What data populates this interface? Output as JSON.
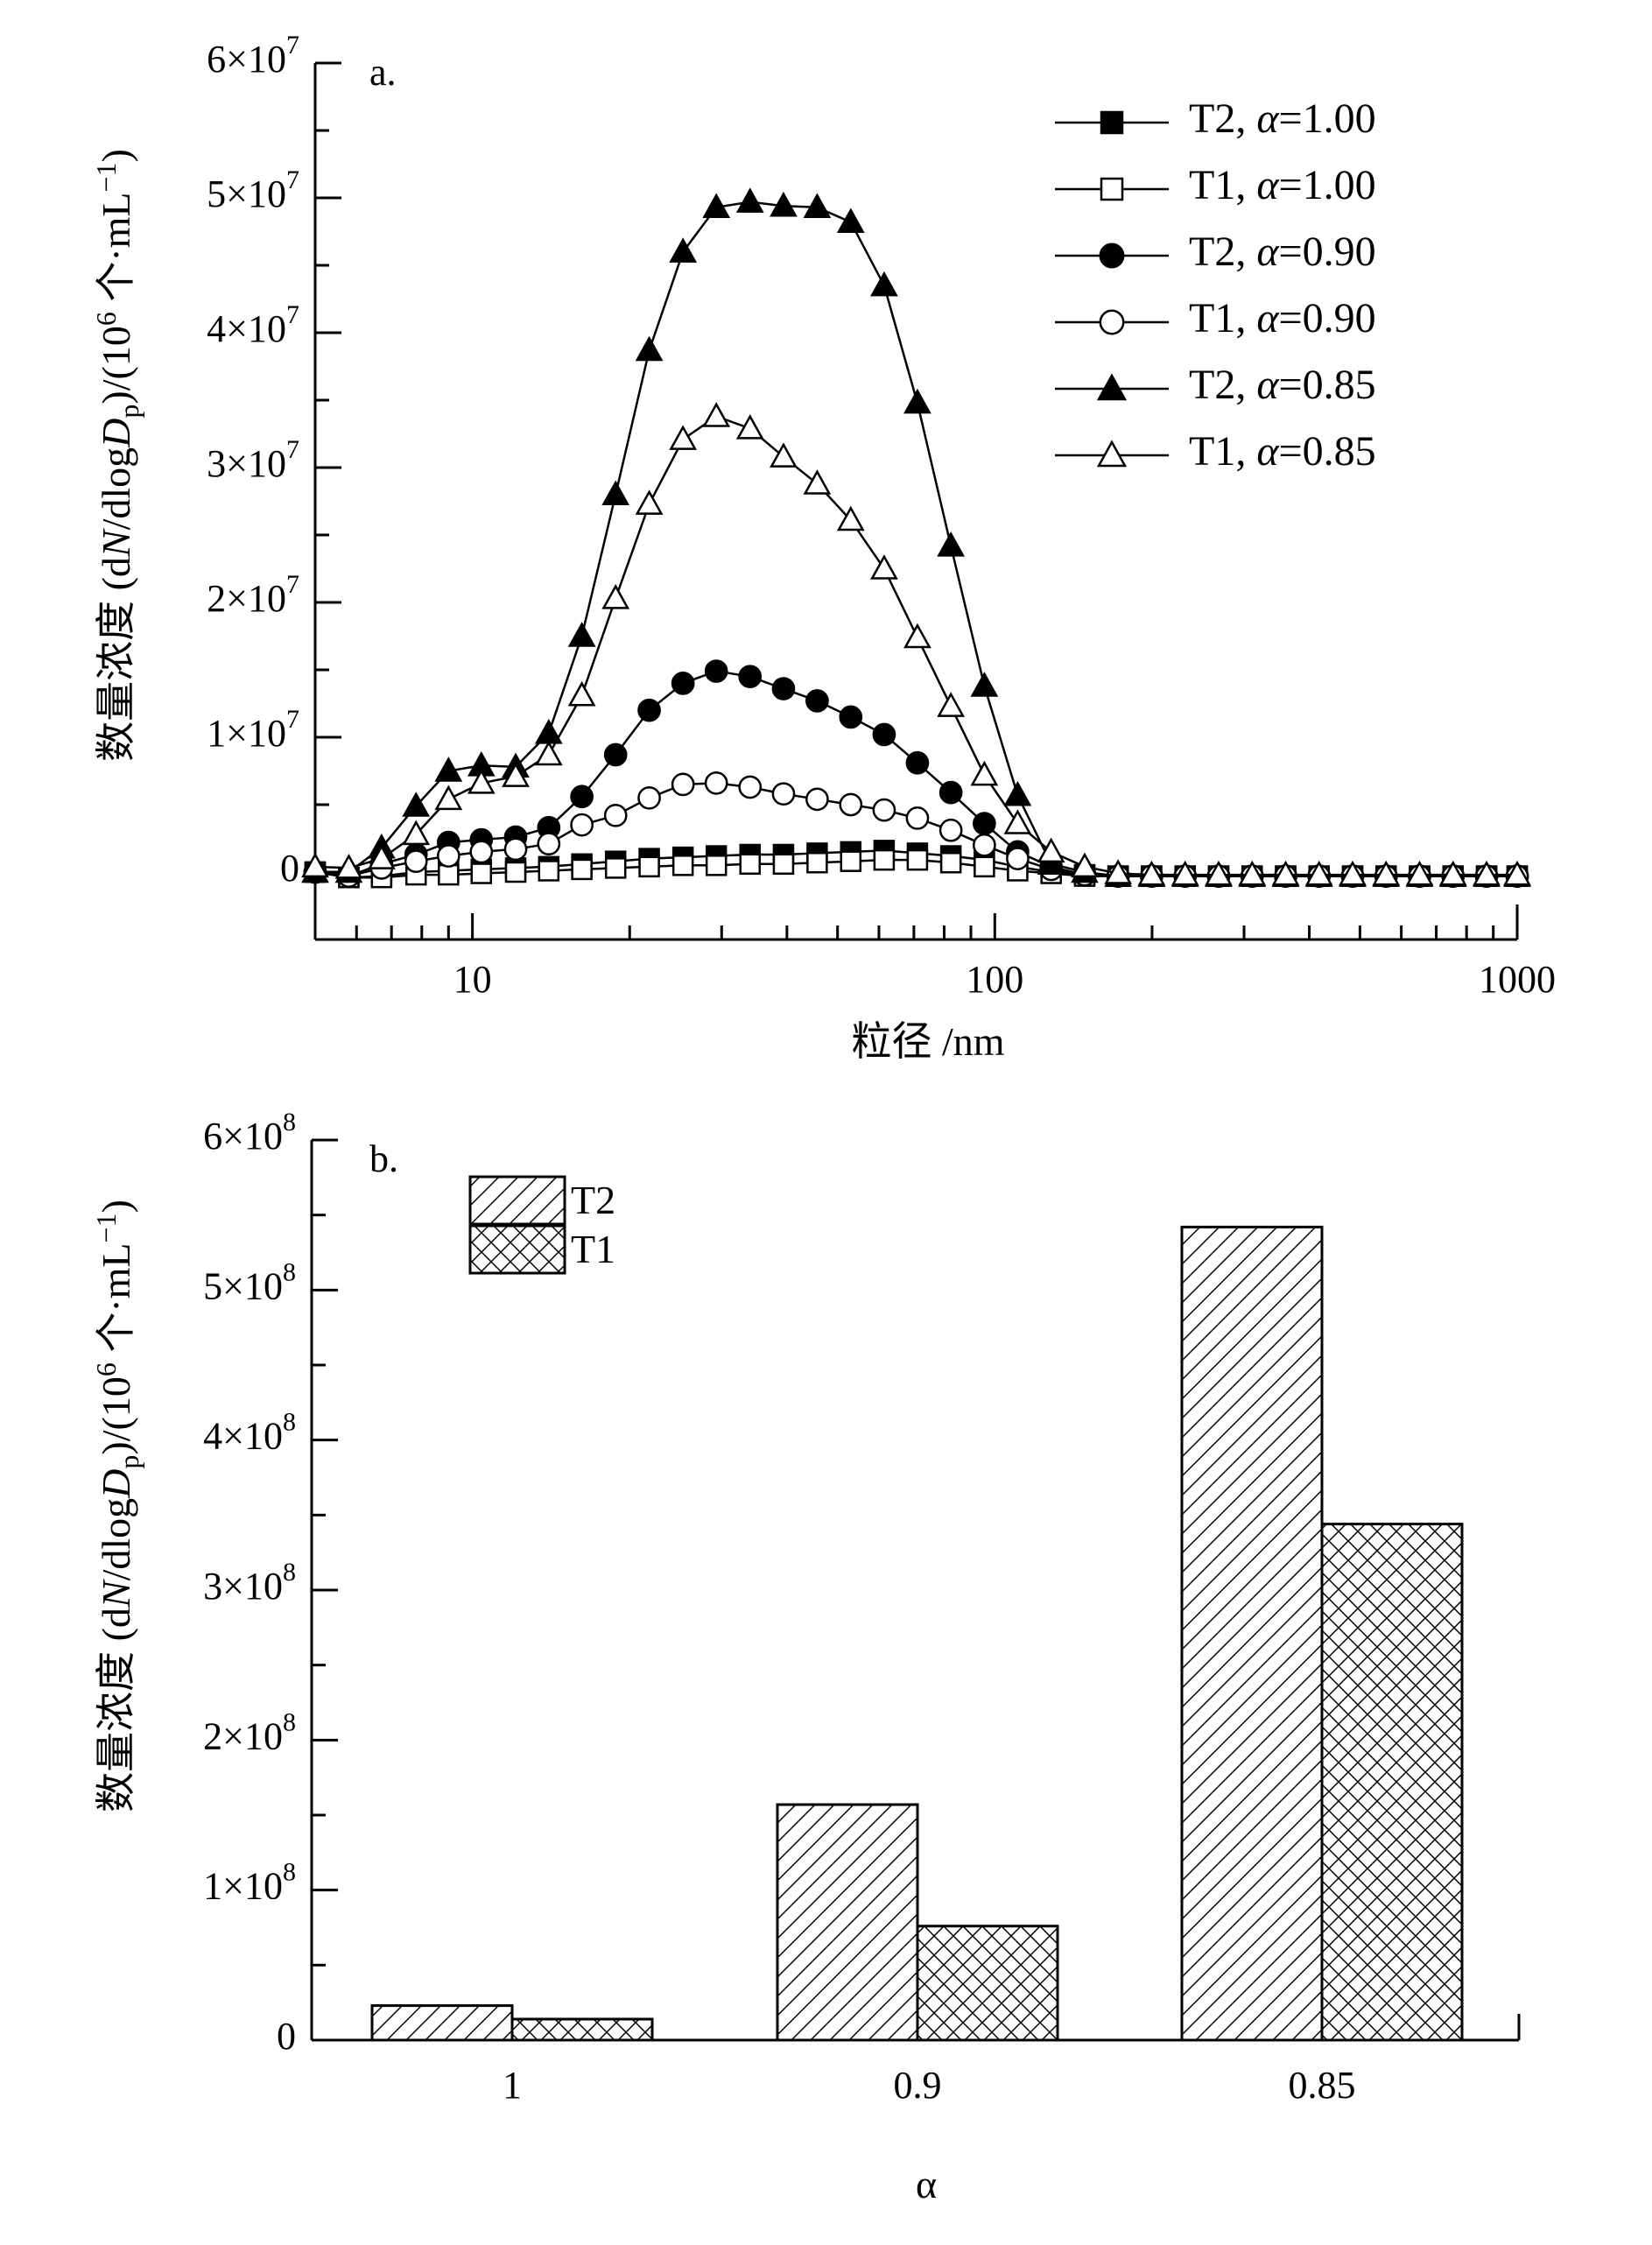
{
  "chart_data": [
    {
      "type": "line",
      "panel_label": "a.",
      "xlabel": "粒径 /nm",
      "ylabel_parts": [
        "数量浓度 (d",
        "N",
        "/dlog",
        "D",
        "p",
        ")/(10",
        "6",
        " 个·mL",
        "−1",
        ")"
      ],
      "x_scale": "log",
      "xlim": [
        5,
        1000
      ],
      "ylim": [
        -5000000,
        60000000
      ],
      "x_tick_labels": [
        "10",
        "100",
        "1000"
      ],
      "y_tick_labels": [
        {
          "v": 60000000,
          "m": "6",
          "e": "7"
        },
        {
          "v": 50000000,
          "m": "5",
          "e": "7"
        },
        {
          "v": 40000000,
          "m": "4",
          "e": "7"
        },
        {
          "v": 30000000,
          "m": "3",
          "e": "7"
        },
        {
          "v": 20000000,
          "m": "2",
          "e": "7"
        },
        {
          "v": 10000000,
          "m": "1",
          "e": "7"
        },
        {
          "v": 0,
          "m": "0",
          "e": ""
        }
      ],
      "x": [
        5.0,
        5.8,
        6.7,
        7.8,
        9.0,
        10.4,
        12.1,
        14.0,
        16.2,
        18.8,
        21.8,
        25.3,
        29.3,
        34.0,
        39.4,
        45.7,
        53.0,
        61.4,
        71.1,
        82.4,
        95.5,
        110.6,
        128.2,
        148.6,
        172.2,
        199.6,
        231.4,
        268.2,
        310.9,
        360.4,
        417.6,
        484.1,
        561.1,
        650.4,
        753.8,
        873.8,
        1000.0
      ],
      "series": [
        {
          "name_parts": [
            "T2, ",
            "α",
            "=1.00"
          ],
          "marker": "square",
          "filled": true,
          "values": [
            0,
            -400000,
            -300000,
            0,
            100000,
            200000,
            300000,
            400000,
            600000,
            800000,
            1000000,
            1100000,
            1200000,
            1300000,
            1300000,
            1400000,
            1500000,
            1600000,
            1400000,
            1200000,
            900000,
            400000,
            0,
            -200000,
            -300000,
            -300000,
            -300000,
            -300000,
            -300000,
            -300000,
            -300000,
            -300000,
            -300000,
            -300000,
            -300000,
            -300000,
            -300000
          ]
        },
        {
          "name_parts": [
            "T1, ",
            "α",
            "=1.00"
          ],
          "marker": "square",
          "filled": false,
          "values": [
            0,
            -400000,
            -400000,
            -200000,
            -200000,
            -100000,
            0,
            100000,
            200000,
            300000,
            400000,
            500000,
            500000,
            600000,
            600000,
            700000,
            800000,
            900000,
            900000,
            700000,
            400000,
            100000,
            -100000,
            -300000,
            -300000,
            -300000,
            -300000,
            -300000,
            -300000,
            -300000,
            -300000,
            -300000,
            -300000,
            -300000,
            -300000,
            -300000,
            -300000
          ]
        },
        {
          "name_parts": [
            "T2, ",
            "α",
            "=0.90"
          ],
          "marker": "circle",
          "filled": true,
          "values": [
            0,
            -300000,
            600000,
            1300000,
            2200000,
            2400000,
            2600000,
            3300000,
            5600000,
            8700000,
            12000000,
            14000000,
            14900000,
            14500000,
            13600000,
            12700000,
            11500000,
            10200000,
            8100000,
            5900000,
            3600000,
            1500000,
            400000,
            -200000,
            -300000,
            -300000,
            -300000,
            -300000,
            -300000,
            -300000,
            -300000,
            -300000,
            -300000,
            -300000,
            -300000,
            -300000,
            -300000
          ]
        },
        {
          "name_parts": [
            "T1, ",
            "α",
            "=0.90"
          ],
          "marker": "circle",
          "filled": false,
          "values": [
            0,
            -300000,
            300000,
            800000,
            1200000,
            1500000,
            1700000,
            2100000,
            3500000,
            4200000,
            5500000,
            6500000,
            6600000,
            6300000,
            5800000,
            5400000,
            5000000,
            4600000,
            4000000,
            3100000,
            2000000,
            1000000,
            200000,
            -200000,
            -300000,
            -300000,
            -300000,
            -300000,
            -300000,
            -300000,
            -300000,
            -300000,
            -300000,
            -300000,
            -300000,
            -300000,
            -300000
          ]
        },
        {
          "name_parts": [
            "T2, ",
            "α",
            "=0.85"
          ],
          "marker": "triangle",
          "filled": true,
          "values": [
            0,
            0,
            1800000,
            4900000,
            7500000,
            7900000,
            7800000,
            10300000,
            17500000,
            28000000,
            38700000,
            46000000,
            49300000,
            49700000,
            49400000,
            49300000,
            48200000,
            43500000,
            34800000,
            24200000,
            13800000,
            5700000,
            600000,
            0,
            -300000,
            -300000,
            -300000,
            -300000,
            -300000,
            -300000,
            -300000,
            -300000,
            -300000,
            -300000,
            -300000,
            -300000,
            -300000
          ]
        },
        {
          "name_parts": [
            "T1, ",
            "α",
            "=0.85"
          ],
          "marker": "triangle",
          "filled": false,
          "values": [
            400000,
            300000,
            1000000,
            2800000,
            5400000,
            6600000,
            7100000,
            8700000,
            13100000,
            20300000,
            27300000,
            32100000,
            33800000,
            32900000,
            30800000,
            28800000,
            26100000,
            22500000,
            17400000,
            12300000,
            7200000,
            3600000,
            1500000,
            400000,
            -100000,
            -200000,
            -200000,
            -200000,
            -200000,
            -200000,
            -200000,
            -200000,
            -200000,
            -200000,
            -200000,
            -200000,
            -200000
          ]
        }
      ]
    },
    {
      "type": "bar",
      "panel_label": "b.",
      "xlabel": "α",
      "ylabel_parts": [
        "数量浓度 (d",
        "N",
        "/dlog",
        "D",
        "p",
        ")/(10",
        "6",
        " 个·mL",
        "−1",
        ")"
      ],
      "categories": [
        "1",
        "0.9",
        "0.85"
      ],
      "ylim": [
        0,
        600000000
      ],
      "y_tick_labels": [
        {
          "v": 600000000,
          "m": "6",
          "e": "8"
        },
        {
          "v": 500000000,
          "m": "5",
          "e": "8"
        },
        {
          "v": 400000000,
          "m": "4",
          "e": "8"
        },
        {
          "v": 300000000,
          "m": "3",
          "e": "8"
        },
        {
          "v": 200000000,
          "m": "2",
          "e": "8"
        },
        {
          "v": 100000000,
          "m": "1",
          "e": "8"
        },
        {
          "v": 0,
          "m": "0",
          "e": ""
        }
      ],
      "series": [
        {
          "name": "T2",
          "pattern": "diagonal",
          "values": [
            23000000,
            157000000,
            542000000
          ]
        },
        {
          "name": "T1",
          "pattern": "crosshatch",
          "values": [
            14000000,
            76000000,
            344000000
          ]
        }
      ]
    }
  ]
}
